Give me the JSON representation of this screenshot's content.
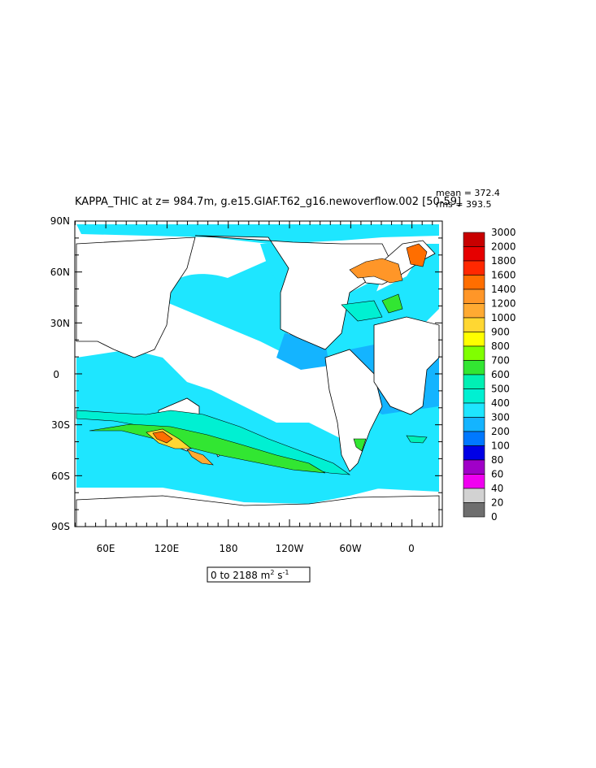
{
  "title": "KAPPA_THIC at z= 984.7m, g.e15.GIAF.T62_g16.newoverflow.002 [50-59]",
  "stats": {
    "mean": "mean = 372.4",
    "rms": "rms = 393.5"
  },
  "y_axis_labels": [
    "90N",
    "60N",
    "30N",
    "0",
    "30S",
    "60S",
    "90S"
  ],
  "x_axis_labels": [
    "60E",
    "120E",
    "180",
    "120W",
    "60W",
    "0"
  ],
  "range_label": {
    "prefix": "0 to 2188 m",
    "sup1": "2",
    "mid": " s",
    "sup2": "-1"
  },
  "colorbar": {
    "labels": [
      "3000",
      "2000",
      "1800",
      "1600",
      "1400",
      "1200",
      "1000",
      "900",
      "800",
      "700",
      "600",
      "500",
      "400",
      "300",
      "200",
      "100",
      "80",
      "60",
      "40",
      "20",
      "0"
    ],
    "colors": [
      "#c80000",
      "#e60000",
      "#ff2800",
      "#ff6e00",
      "#ff9628",
      "#ffaa32",
      "#ffd732",
      "#ffff00",
      "#80ff00",
      "#32e632",
      "#00f0b4",
      "#00f0d2",
      "#1ee6ff",
      "#14b4ff",
      "#0078ff",
      "#0000e6",
      "#a000c8",
      "#f000f0",
      "#d2d2d2",
      "#6e6e6e"
    ]
  },
  "colors": {
    "ocean": "#1ee6ff",
    "land": "#ffffff",
    "coast": "#000000"
  }
}
